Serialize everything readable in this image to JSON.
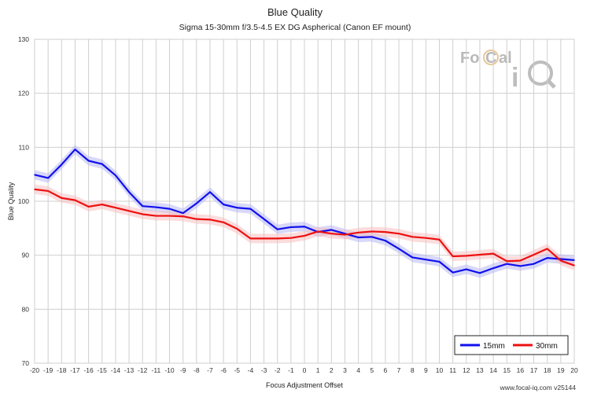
{
  "chart_data": {
    "type": "line",
    "title": "Blue Quality",
    "subtitle": "Sigma 15-30mm f/3.5-4.5 EX DG Aspherical (Canon EF mount)",
    "xlabel": "Focus Adjustment Offset",
    "ylabel": "Blue Quality",
    "xlim": [
      -20,
      20
    ],
    "ylim": [
      70,
      130
    ],
    "yticks": [
      70,
      80,
      90,
      100,
      110,
      120,
      130
    ],
    "grid": true,
    "legend_position": "bottom-right",
    "x": [
      -20,
      -19,
      -18,
      -17,
      -16,
      -15,
      -14,
      -13,
      -12,
      -11,
      -10,
      -9,
      -8,
      -7,
      -6,
      -5,
      -4,
      -3,
      -2,
      -1,
      0,
      1,
      2,
      3,
      4,
      5,
      6,
      7,
      8,
      9,
      10,
      11,
      12,
      13,
      14,
      15,
      16,
      17,
      18,
      19,
      20
    ],
    "series": [
      {
        "name": "15mm",
        "color": "#1010ee",
        "band_color": "#b8b8f4",
        "values": [
          104.9,
          104.3,
          106.8,
          109.6,
          107.5,
          106.9,
          104.8,
          101.7,
          99.1,
          98.9,
          98.6,
          97.8,
          99.6,
          101.7,
          99.4,
          98.8,
          98.6,
          96.7,
          94.8,
          95.2,
          95.3,
          94.3,
          94.7,
          94.0,
          93.3,
          93.4,
          92.7,
          91.2,
          89.6,
          89.2,
          88.8,
          86.8,
          87.4,
          86.7,
          87.6,
          88.4,
          88.0,
          88.4,
          89.5,
          89.3,
          89.1
        ]
      },
      {
        "name": "30mm",
        "color": "#ee1010",
        "band_color": "#f8c0c0",
        "values": [
          102.2,
          101.9,
          100.6,
          100.2,
          99.0,
          99.4,
          98.8,
          98.2,
          97.6,
          97.3,
          97.3,
          97.2,
          96.7,
          96.6,
          96.1,
          94.9,
          93.1,
          93.1,
          93.1,
          93.2,
          93.6,
          94.4,
          94.0,
          93.8,
          94.2,
          94.4,
          94.3,
          94.0,
          93.4,
          93.2,
          92.9,
          89.8,
          89.9,
          90.1,
          90.3,
          88.9,
          89.0,
          90.1,
          91.2,
          89.0,
          88.1
        ]
      }
    ]
  },
  "legend": {
    "items": [
      {
        "label": "15mm",
        "color": "#1010ee"
      },
      {
        "label": "30mm",
        "color": "#ee1010"
      }
    ]
  },
  "logo": {
    "text": "FoCal iQ"
  },
  "footer": {
    "text": "www.focal-iq.com  v25144"
  }
}
